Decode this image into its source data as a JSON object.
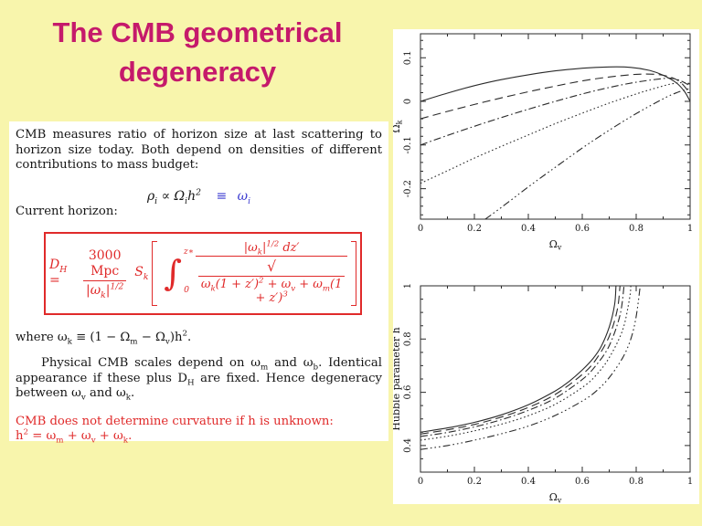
{
  "slide": {
    "background_color": "#F8F5AC",
    "title": {
      "line1": "The CMB geometrical",
      "line2": "degeneracy",
      "color": "#C51A6B"
    }
  },
  "text_panel": {
    "para1": "CMB measures ratio of horizon size at last scattering to horizon size today.  Both depend on densities of different contributions to mass budget:",
    "density_eq": {
      "black": "ρ_{i} ∝ Ω_{i}h^{2}",
      "blue": "≡ ω_{i}",
      "blue_color": "#3A3AD0"
    },
    "current_horizon": "Current horizon:",
    "boxed_equation": {
      "border_color": "#E02A2A",
      "lhs": "D_{H} =",
      "frac_num": "3000 Mpc",
      "frac_den": "|ω_{k}|^{1/2}",
      "prefactor": "S_{k}",
      "integral_sign": "∫",
      "integral_upper": "z∗",
      "integral_lower": "0",
      "inner_num": "|ω_{k}|^{1/2} dz′",
      "sqrt_sign": "√",
      "inner_den": "ω_{k}(1 + z′)^{2} + ω_{v} + ω_{m}(1 + z′)^{3}"
    },
    "where_line": "where ω_{k} ≡ (1 − Ω_{m} − Ω_{v})h^{2}.",
    "para2": "Physical CMB scales depend on ω_{m} and ω_{b}. Identical appearance if these plus D_{H} are fixed. Hence degeneracy between ω_{v} and ω_{k}.",
    "red_note_line1": "CMB does not determine curvature if h is unknown:",
    "red_note_line2": "h^{2} = ω_{m} + ω_{v} + ω_{k}.",
    "red_color": "#E02A2A"
  },
  "chart_data": [
    {
      "type": "line",
      "title": "",
      "xlabel": "Ω_v",
      "ylabel": "Ω_k",
      "xlim": [
        0,
        1
      ],
      "ylim": [
        -0.27,
        0.155
      ],
      "xticks": [
        0,
        0.2,
        0.4,
        0.6,
        0.8,
        1
      ],
      "xtick_labels": [
        "0",
        "0.2",
        "0.4",
        "0.6",
        "0.8",
        "1"
      ],
      "yticks": [
        0.1,
        0,
        -0.1,
        -0.2
      ],
      "ytick_labels": [
        "0.1",
        "0",
        "-0.1",
        "-0.2"
      ],
      "x_minor_step": 0.1,
      "y_minor_step": 0.02,
      "grid": false,
      "legend": null,
      "stroke_color": "#2a2a2a",
      "series": [
        {
          "name": "curve-1",
          "style": "solid",
          "points": [
            [
              0,
              0
            ],
            [
              0.1,
              0.019
            ],
            [
              0.2,
              0.036
            ],
            [
              0.3,
              0.05
            ],
            [
              0.4,
              0.061
            ],
            [
              0.5,
              0.07
            ],
            [
              0.6,
              0.076
            ],
            [
              0.7,
              0.079
            ],
            [
              0.78,
              0.078
            ],
            [
              0.85,
              0.071
            ],
            [
              0.9,
              0.06
            ],
            [
              0.95,
              0.042
            ],
            [
              0.98,
              0.022
            ],
            [
              1,
              0
            ]
          ]
        },
        {
          "name": "curve-2",
          "style": "dashed",
          "points": [
            [
              0,
              -0.04
            ],
            [
              0.1,
              -0.023
            ],
            [
              0.2,
              -0.007
            ],
            [
              0.3,
              0.008
            ],
            [
              0.4,
              0.022
            ],
            [
              0.5,
              0.035
            ],
            [
              0.6,
              0.047
            ],
            [
              0.7,
              0.056
            ],
            [
              0.8,
              0.062
            ],
            [
              0.87,
              0.062
            ],
            [
              0.92,
              0.057
            ],
            [
              0.96,
              0.046
            ],
            [
              0.99,
              0.026
            ]
          ]
        },
        {
          "name": "curve-3",
          "style": "dash-dot",
          "points": [
            [
              0,
              -0.1
            ],
            [
              0.1,
              -0.078
            ],
            [
              0.2,
              -0.057
            ],
            [
              0.3,
              -0.037
            ],
            [
              0.4,
              -0.018
            ],
            [
              0.5,
              0
            ],
            [
              0.6,
              0.017
            ],
            [
              0.7,
              0.032
            ],
            [
              0.8,
              0.044
            ],
            [
              0.88,
              0.051
            ],
            [
              0.93,
              0.053
            ],
            [
              0.97,
              0.046
            ],
            [
              1,
              0.035
            ]
          ]
        },
        {
          "name": "curve-4",
          "style": "dotted",
          "points": [
            [
              0,
              -0.188
            ],
            [
              0.1,
              -0.159
            ],
            [
              0.2,
              -0.13
            ],
            [
              0.3,
              -0.103
            ],
            [
              0.4,
              -0.077
            ],
            [
              0.5,
              -0.051
            ],
            [
              0.6,
              -0.027
            ],
            [
              0.7,
              -0.004
            ],
            [
              0.8,
              0.017
            ],
            [
              0.88,
              0.032
            ],
            [
              0.93,
              0.04
            ],
            [
              0.97,
              0.043
            ],
            [
              1,
              0.041
            ]
          ]
        },
        {
          "name": "curve-5",
          "style": "dash-dot-dot-dot",
          "points": [
            [
              0.24,
              -0.27
            ],
            [
              0.3,
              -0.243
            ],
            [
              0.4,
              -0.196
            ],
            [
              0.5,
              -0.151
            ],
            [
              0.6,
              -0.107
            ],
            [
              0.7,
              -0.066
            ],
            [
              0.8,
              -0.028
            ],
            [
              0.9,
              0.006
            ],
            [
              0.95,
              0.02
            ],
            [
              1,
              0.03
            ]
          ]
        }
      ]
    },
    {
      "type": "line",
      "title": "",
      "xlabel": "Ω_v",
      "ylabel": "Hubble parameter h",
      "xlim": [
        0,
        1
      ],
      "ylim": [
        0.3,
        1.0
      ],
      "xticks": [
        0,
        0.2,
        0.4,
        0.6,
        0.8,
        1
      ],
      "xtick_labels": [
        "0",
        "0.2",
        "0.4",
        "0.6",
        "0.8",
        "1"
      ],
      "yticks": [
        0.4,
        0.6,
        0.8,
        1
      ],
      "ytick_labels": [
        "0.4",
        "0.6",
        "0.8",
        "1"
      ],
      "x_minor_step": 0.1,
      "y_minor_step": 0.05,
      "grid": false,
      "legend": null,
      "stroke_color": "#2a2a2a",
      "series": [
        {
          "name": "curve-1",
          "style": "solid",
          "points": [
            [
              0,
              0.45
            ],
            [
              0.1,
              0.466
            ],
            [
              0.2,
              0.487
            ],
            [
              0.3,
              0.515
            ],
            [
              0.4,
              0.553
            ],
            [
              0.5,
              0.605
            ],
            [
              0.55,
              0.64
            ],
            [
              0.6,
              0.684
            ],
            [
              0.64,
              0.727
            ],
            [
              0.67,
              0.772
            ],
            [
              0.7,
              0.845
            ],
            [
              0.72,
              0.93
            ],
            [
              0.725,
              1
            ]
          ]
        },
        {
          "name": "curve-2",
          "style": "dashed",
          "points": [
            [
              0,
              0.443
            ],
            [
              0.1,
              0.459
            ],
            [
              0.2,
              0.479
            ],
            [
              0.3,
              0.507
            ],
            [
              0.4,
              0.543
            ],
            [
              0.5,
              0.592
            ],
            [
              0.6,
              0.667
            ],
            [
              0.65,
              0.722
            ],
            [
              0.7,
              0.81
            ],
            [
              0.73,
              0.91
            ],
            [
              0.74,
              1
            ]
          ]
        },
        {
          "name": "curve-3",
          "style": "dash-dot",
          "points": [
            [
              0,
              0.434
            ],
            [
              0.1,
              0.449
            ],
            [
              0.2,
              0.47
            ],
            [
              0.3,
              0.497
            ],
            [
              0.4,
              0.532
            ],
            [
              0.5,
              0.578
            ],
            [
              0.6,
              0.648
            ],
            [
              0.65,
              0.7
            ],
            [
              0.7,
              0.775
            ],
            [
              0.74,
              0.89
            ],
            [
              0.755,
              1
            ]
          ]
        },
        {
          "name": "curve-4",
          "style": "dotted",
          "points": [
            [
              0,
              0.42
            ],
            [
              0.1,
              0.435
            ],
            [
              0.2,
              0.455
            ],
            [
              0.3,
              0.48
            ],
            [
              0.4,
              0.512
            ],
            [
              0.5,
              0.555
            ],
            [
              0.6,
              0.618
            ],
            [
              0.65,
              0.663
            ],
            [
              0.7,
              0.73
            ],
            [
              0.75,
              0.835
            ],
            [
              0.775,
              0.95
            ],
            [
              0.78,
              1
            ]
          ]
        },
        {
          "name": "curve-5",
          "style": "dash-dot-dot-dot",
          "points": [
            [
              0,
              0.385
            ],
            [
              0.1,
              0.4
            ],
            [
              0.2,
              0.42
            ],
            [
              0.3,
              0.444
            ],
            [
              0.4,
              0.473
            ],
            [
              0.5,
              0.513
            ],
            [
              0.6,
              0.567
            ],
            [
              0.65,
              0.603
            ],
            [
              0.7,
              0.655
            ],
            [
              0.75,
              0.73
            ],
            [
              0.78,
              0.8
            ],
            [
              0.8,
              0.885
            ],
            [
              0.815,
              1
            ]
          ]
        }
      ]
    }
  ]
}
